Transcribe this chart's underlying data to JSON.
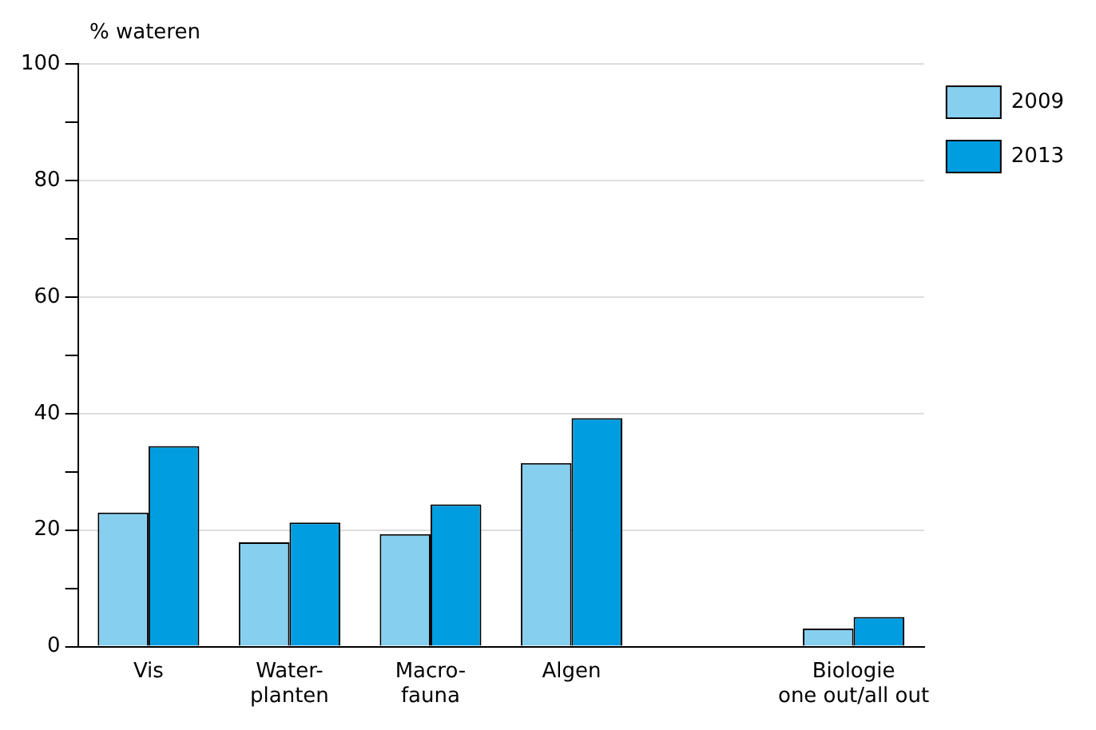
{
  "chart_data": {
    "type": "bar",
    "ylabel": "% wateren",
    "categories": [
      "Vis",
      "Water-\nplanten",
      "Macro-\nfauna",
      "Algen",
      null,
      "Biologie\none out/all out"
    ],
    "series": [
      {
        "name": "2009",
        "color": "#87cfef",
        "values": [
          23,
          17.9,
          19.3,
          31.5,
          null,
          3.1
        ]
      },
      {
        "name": "2013",
        "color": "#009de0",
        "values": [
          34.4,
          21.3,
          24.4,
          39.2,
          null,
          5.1
        ]
      }
    ],
    "ylim": [
      0,
      100
    ],
    "yticks": [
      0,
      {
        "value": 10,
        "label": null
      },
      20,
      {
        "value": 30,
        "label": null
      },
      40,
      {
        "value": 50,
        "label": null
      },
      60,
      {
        "value": 70,
        "label": null
      },
      80,
      {
        "value": 90,
        "label": null
      },
      100
    ],
    "grid": "y",
    "legend": "top right"
  }
}
